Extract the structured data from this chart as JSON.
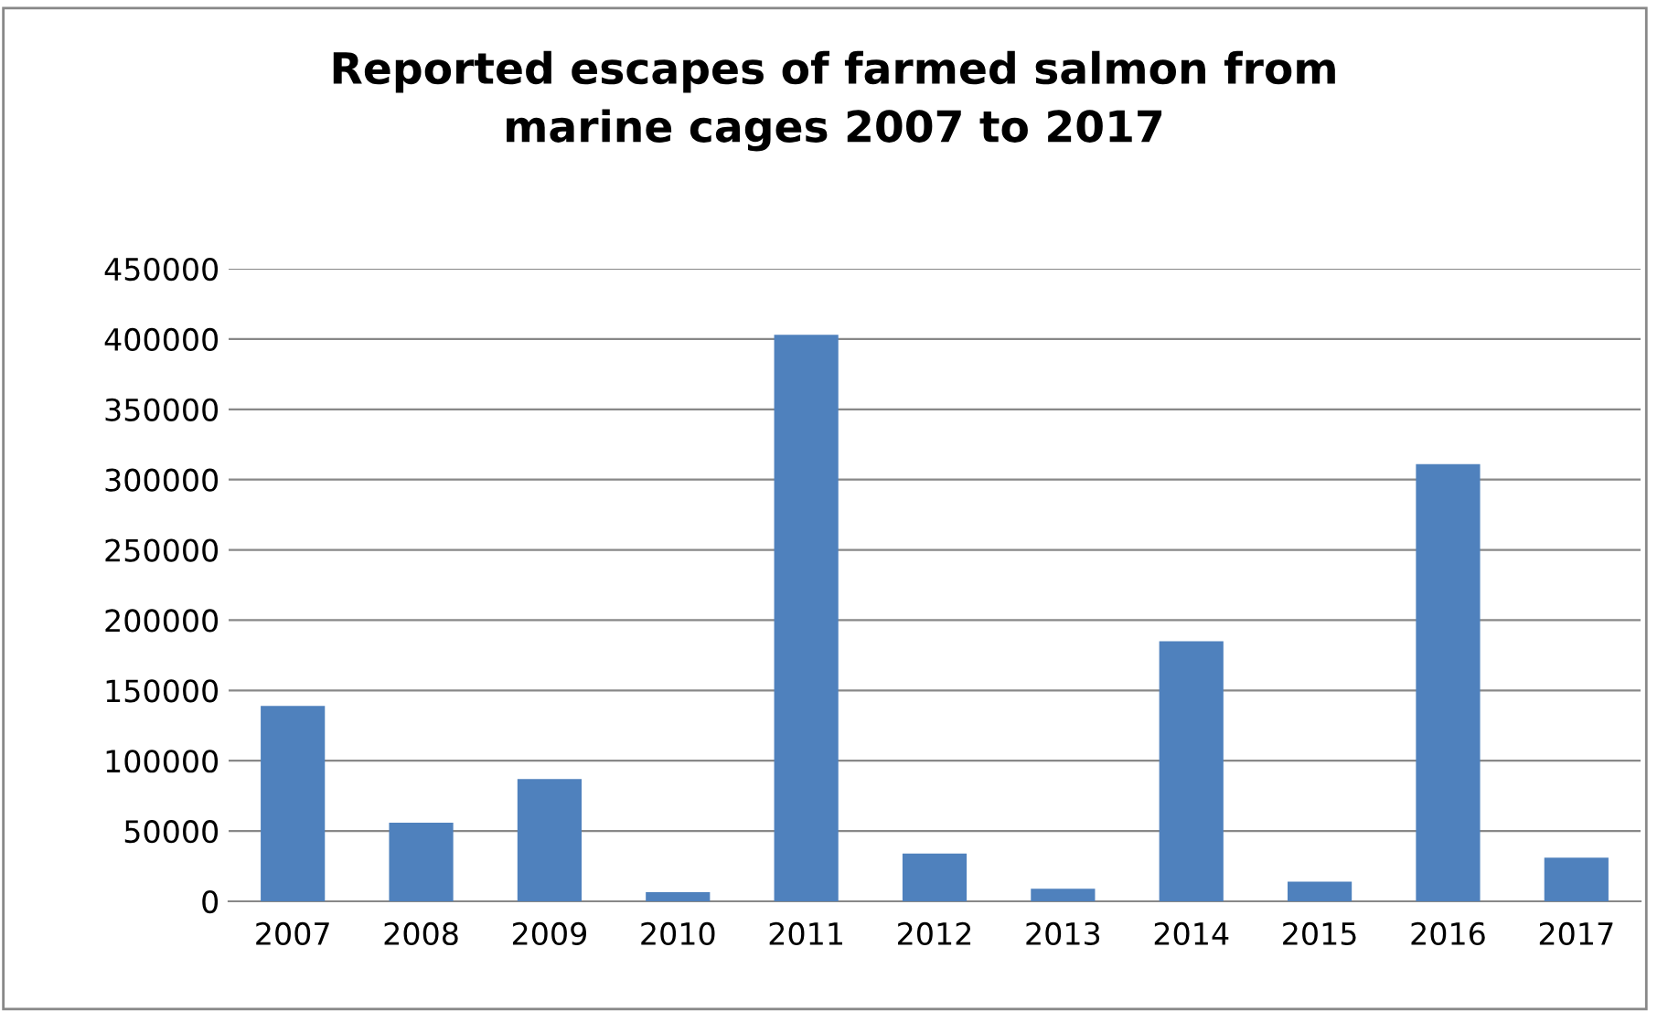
{
  "chart_data": {
    "type": "bar",
    "title": "Reported escapes of farmed salmon from\nmarine cages 2007 to 2017",
    "categories": [
      "2007",
      "2008",
      "2009",
      "2010",
      "2011",
      "2012",
      "2013",
      "2014",
      "2015",
      "2016",
      "2017"
    ],
    "values": [
      139000,
      56000,
      87000,
      6500,
      403000,
      34000,
      9000,
      185000,
      14000,
      311000,
      31000
    ],
    "color": "#4f81bd",
    "ylim": [
      0,
      450000
    ],
    "yticks": [
      0,
      50000,
      100000,
      150000,
      200000,
      250000,
      300000,
      350000,
      400000,
      450000
    ],
    "grid": "y",
    "legend": false
  }
}
